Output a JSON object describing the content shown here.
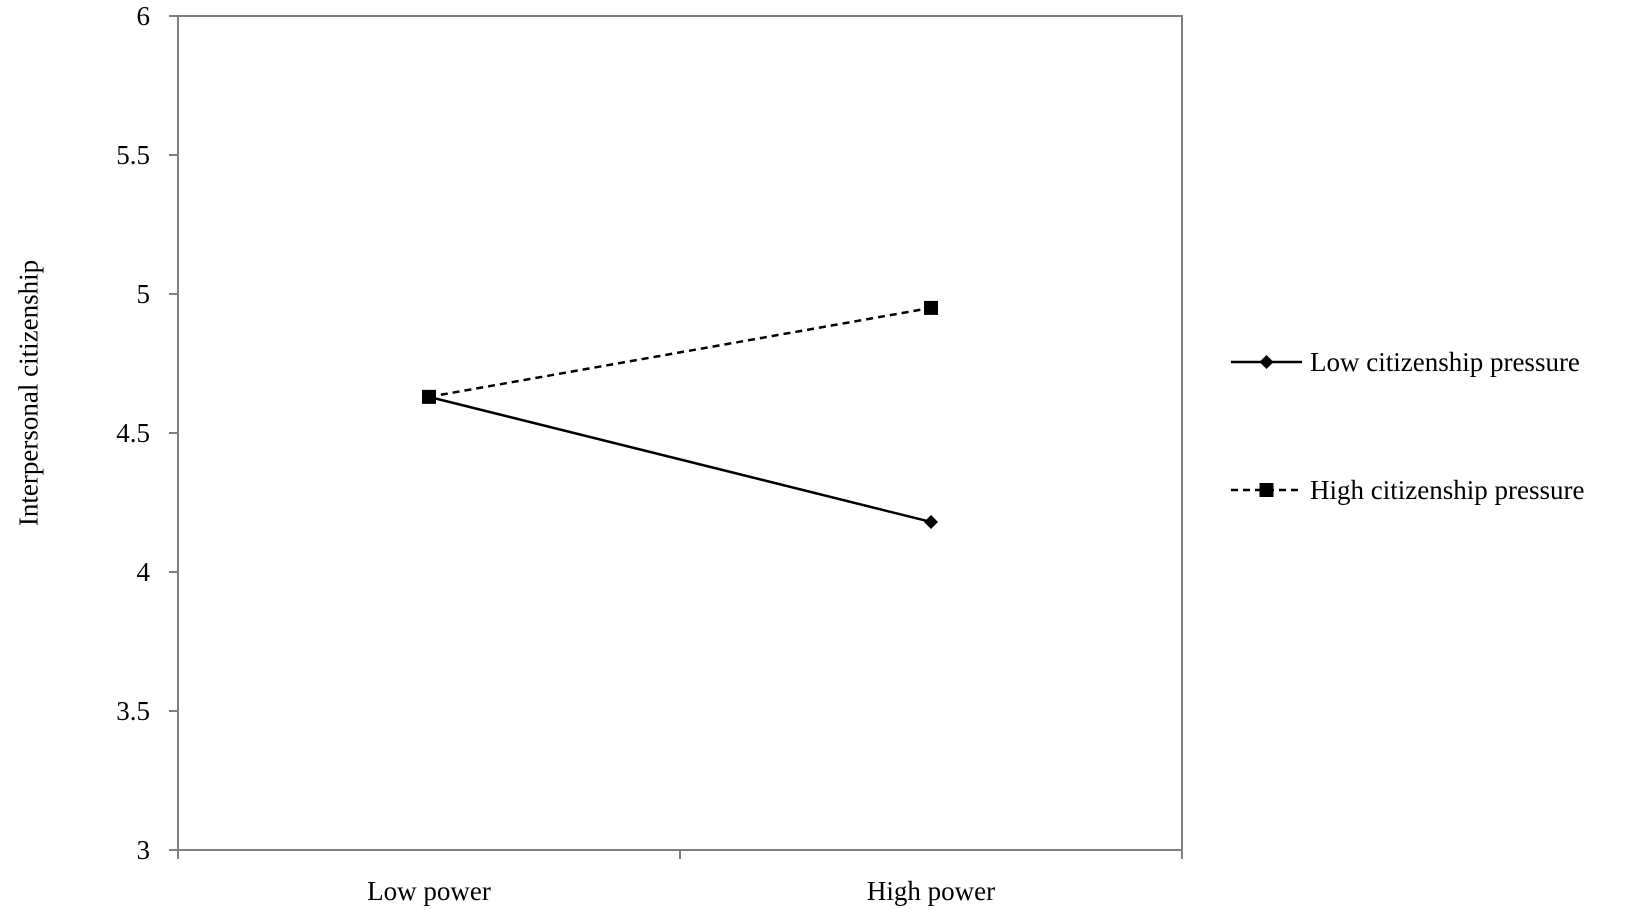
{
  "chart_data": {
    "type": "line",
    "title": "",
    "xlabel": "",
    "ylabel": "Interpersonal citizenship",
    "categories": [
      "Low power",
      "High power"
    ],
    "ylim": [
      3,
      6
    ],
    "yticks": [
      "3",
      "3.5",
      "4",
      "4.5",
      "5",
      "5.5",
      "6"
    ],
    "grid": false,
    "legend_position": "right",
    "series": [
      {
        "name": "Low citizenship pressure",
        "values": [
          4.63,
          4.18
        ],
        "line_style": "solid",
        "marker": "diamond",
        "color": "#000000"
      },
      {
        "name": "High citizenship pressure",
        "values": [
          4.63,
          4.95
        ],
        "line_style": "dashed",
        "marker": "square",
        "color": "#000000"
      }
    ]
  },
  "colors": {
    "frame": "#7f7f7f",
    "series": "#000000",
    "background": "#ffffff"
  }
}
